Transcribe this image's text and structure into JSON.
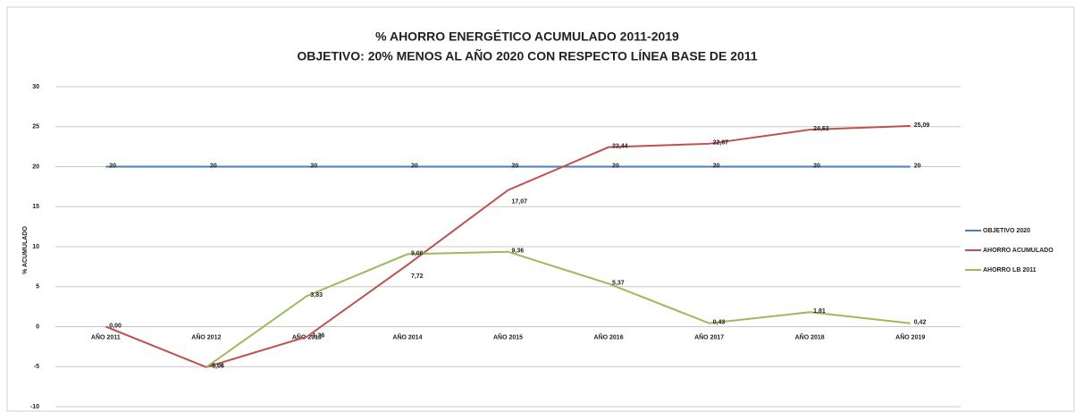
{
  "chart_data": {
    "type": "line",
    "title": "% AHORRO ENERGÉTICO ACUMULADO 2011-2019",
    "subtitle": "OBJETIVO: 20% MENOS AL AÑO 2020 CON RESPECTO LÍNEA BASE DE 2011",
    "y_label": "% ACUMULADO",
    "categories": [
      "AÑO 2011",
      "AÑO 2012",
      "AÑO 2013",
      "AÑO 2014",
      "AÑO 2015",
      "AÑO 2016",
      "AÑO 2017",
      "AÑO 2018",
      "AÑO 2019"
    ],
    "series": [
      {
        "name": "OBJETIVO 2020",
        "color": "#4a7ebb",
        "values": [
          20,
          20,
          20,
          20,
          20,
          20,
          20,
          20,
          20
        ]
      },
      {
        "name": "AHORRO ACUMULADO",
        "color": "#c0504d",
        "values": [
          0,
          -5.06,
          -1.26,
          7.72,
          17.07,
          22.44,
          22.87,
          24.63,
          25.09
        ],
        "value_labels": [
          "0,00",
          "-5,06",
          "-1,26",
          "7,72",
          "17,07",
          "22,44",
          "22,87",
          "24,63",
          "25,09"
        ]
      },
      {
        "name": "AHORRO LB 2011",
        "color": "#9bbb59",
        "values": [
          null,
          -5.06,
          3.83,
          9.06,
          9.36,
          5.37,
          0.43,
          1.81,
          0.42
        ],
        "value_labels": [
          null,
          "-5,06",
          "3,83",
          "9,06",
          "9,36",
          "5,37",
          "0,43",
          "1,81",
          "0,42"
        ]
      }
    ],
    "ylim": [
      -10,
      30
    ],
    "yticks": [
      -10,
      -5,
      0,
      5,
      10,
      15,
      20,
      25,
      30
    ],
    "grid": true,
    "legend": "right"
  }
}
